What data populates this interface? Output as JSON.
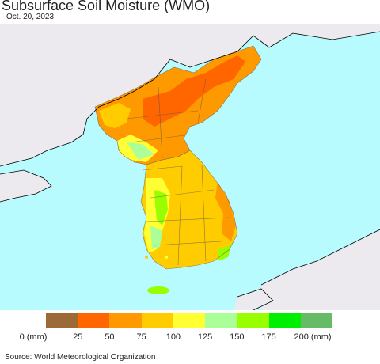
{
  "title": "Subsurface Soil Moisture (WMO)",
  "date": "Oct. 20, 2023",
  "legend": {
    "colors": [
      "#9b6a36",
      "#ff6600",
      "#ff9900",
      "#ffcc00",
      "#ffff33",
      "#aaff99",
      "#99ff00",
      "#00ee00",
      "#66bb66"
    ],
    "labels": [
      "0 (mm)",
      "25",
      "50",
      "75",
      "100",
      "125",
      "150",
      "175",
      "200 (mm)"
    ]
  },
  "source": "Source: World Meteorological Organization",
  "colors": {
    "sea": "#b8fbff",
    "land_nodata": "#eceaee"
  }
}
